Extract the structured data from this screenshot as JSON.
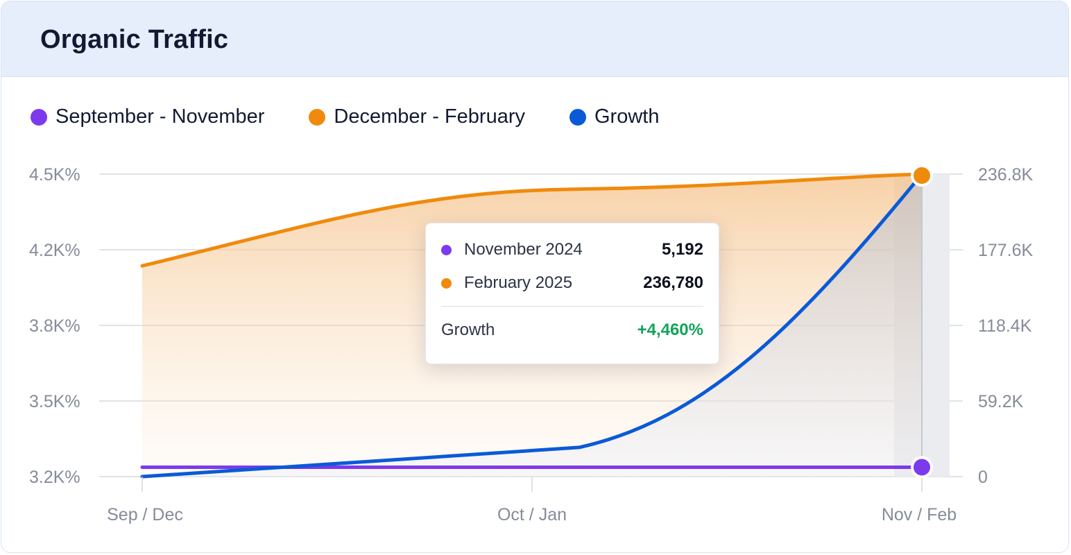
{
  "header": {
    "title": "Organic Traffic"
  },
  "legend": [
    {
      "label": "September - November",
      "color": "#7c3aed"
    },
    {
      "label": "December - February",
      "color": "#f08a0c"
    },
    {
      "label": "Growth",
      "color": "#0a5ad8"
    }
  ],
  "tooltip": {
    "rows": [
      {
        "label": "November 2024",
        "value": "5,192",
        "color": "#7c3aed"
      },
      {
        "label": "February 2025",
        "value": "236,780",
        "color": "#f08a0c"
      }
    ],
    "growth_label": "Growth",
    "growth_value": "+4,460%",
    "growth_color": "#12a35a"
  },
  "chart_data": {
    "type": "area",
    "categories": [
      "Sep / Dec",
      "Oct / Jan",
      "Nov / Feb"
    ],
    "y_left_ticks": [
      "4.5K%",
      "4.2K%",
      "3.8K%",
      "3.5K%",
      "3.2K%"
    ],
    "y_right_ticks": [
      "236.8K",
      "177.6K",
      "118.4K",
      "59.2K",
      "0"
    ],
    "y_right_range": [
      0,
      236800
    ],
    "series": [
      {
        "name": "September - November",
        "axis": "right",
        "color": "#7c3aed",
        "values": [
          5192,
          5192,
          5192
        ]
      },
      {
        "name": "December - February",
        "axis": "right",
        "color": "#f08a0c",
        "values": [
          165000,
          225000,
          236780
        ]
      },
      {
        "name": "Growth",
        "axis": "right",
        "color": "#0a5ad8",
        "values": [
          0,
          12000,
          236800
        ]
      }
    ],
    "highlighted_category": "Nov / Feb",
    "grid": true
  }
}
